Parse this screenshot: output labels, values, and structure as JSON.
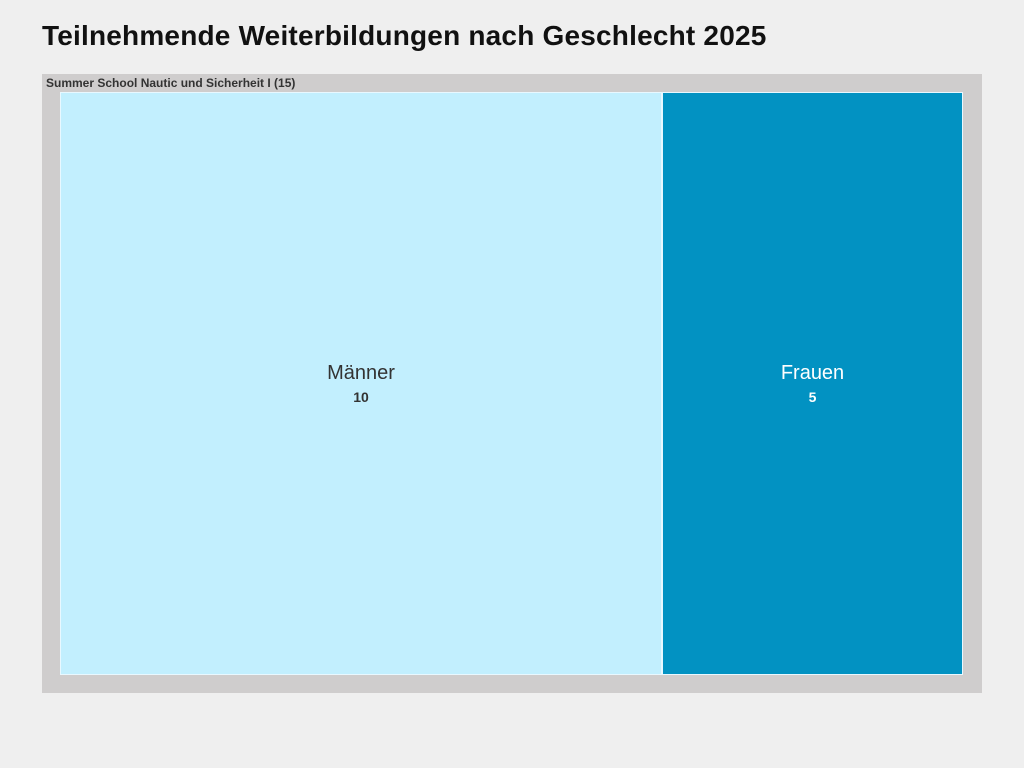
{
  "title": "Teilnehmende Weiterbildungen nach Geschlecht 2025",
  "chart_data": {
    "type": "treemap",
    "title": "Teilnehmende Weiterbildungen nach Geschlecht 2025",
    "group": {
      "label": "Summer School Nautic und Sicherheit I (15)",
      "name": "Summer School Nautic und Sicherheit I",
      "total": 15
    },
    "items": [
      {
        "name": "Männer",
        "value": 10,
        "value_label": "10",
        "color": "#c2effe",
        "text_color": "#333333"
      },
      {
        "name": "Frauen",
        "value": 5,
        "value_label": "5",
        "color": "#0292c2",
        "text_color": "#ffffff"
      }
    ]
  }
}
